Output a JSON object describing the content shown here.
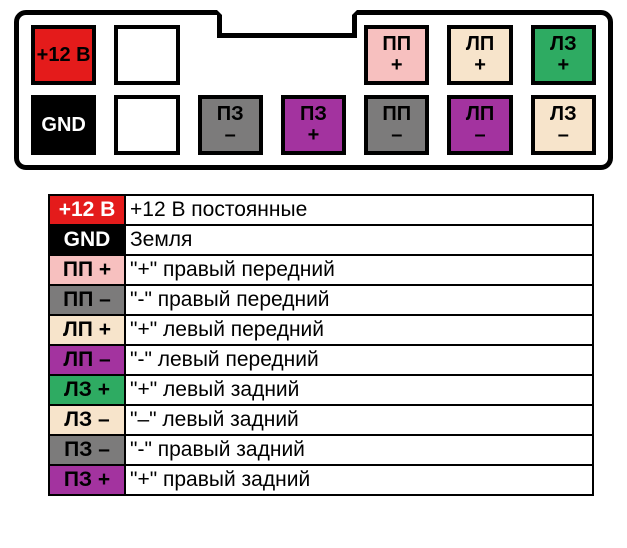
{
  "colors": {
    "red": "#e41b1b",
    "black": "#000000",
    "white": "#ffffff",
    "pink": "#f7c0bf",
    "gray": "#7c7b7b",
    "cream": "#f7e4cb",
    "purple": "#a3339f",
    "green": "#2eab62"
  },
  "connector": {
    "row1": [
      {
        "label1": "+12 В",
        "label2": "",
        "bg": "red",
        "fg": "black"
      },
      {
        "label1": "",
        "label2": "",
        "bg": "white",
        "fg": "black"
      },
      {
        "label1": "",
        "label2": "",
        "bg": "white",
        "fg": "black",
        "hidden": true
      },
      {
        "label1": "",
        "label2": "",
        "bg": "white",
        "fg": "black",
        "hidden": true
      },
      {
        "label1": "ПП",
        "label2": "+",
        "bg": "pink",
        "fg": "black"
      },
      {
        "label1": "ЛП",
        "label2": "+",
        "bg": "cream",
        "fg": "black"
      },
      {
        "label1": "ЛЗ",
        "label2": "+",
        "bg": "green",
        "fg": "black"
      }
    ],
    "row2": [
      {
        "label1": "GND",
        "label2": "",
        "bg": "black",
        "fg": "white"
      },
      {
        "label1": "",
        "label2": "",
        "bg": "white",
        "fg": "black"
      },
      {
        "label1": "ПЗ",
        "label2": "–",
        "bg": "gray",
        "fg": "black"
      },
      {
        "label1": "ПЗ",
        "label2": "+",
        "bg": "purple",
        "fg": "black"
      },
      {
        "label1": "ПП",
        "label2": "–",
        "bg": "gray",
        "fg": "black"
      },
      {
        "label1": "ЛП",
        "label2": "–",
        "bg": "purple",
        "fg": "black"
      },
      {
        "label1": "ЛЗ",
        "label2": "–",
        "bg": "cream",
        "fg": "black"
      }
    ]
  },
  "legend": [
    {
      "code": "+12 В",
      "bg": "red",
      "fg": "white",
      "desc": "+12 В постоянные"
    },
    {
      "code": "GND",
      "bg": "black",
      "fg": "white",
      "desc": "Земля"
    },
    {
      "code": "ПП +",
      "bg": "pink",
      "fg": "black",
      "desc": "\"+\" правый передний"
    },
    {
      "code": "ПП –",
      "bg": "gray",
      "fg": "black",
      "desc": "\"-\" правый передний"
    },
    {
      "code": "ЛП +",
      "bg": "cream",
      "fg": "black",
      "desc": "\"+\" левый передний"
    },
    {
      "code": "ЛП –",
      "bg": "purple",
      "fg": "black",
      "desc": "\"-\" левый передний"
    },
    {
      "code": "ЛЗ +",
      "bg": "green",
      "fg": "black",
      "desc": "\"+\" левый задний"
    },
    {
      "code": "ЛЗ –",
      "bg": "cream",
      "fg": "black",
      "desc": "\"–\" левый задний"
    },
    {
      "code": "ПЗ –",
      "bg": "gray",
      "fg": "black",
      "desc": "\"-\" правый задний"
    },
    {
      "code": "ПЗ +",
      "bg": "purple",
      "fg": "black",
      "desc": "\"+\" правый задний"
    }
  ]
}
